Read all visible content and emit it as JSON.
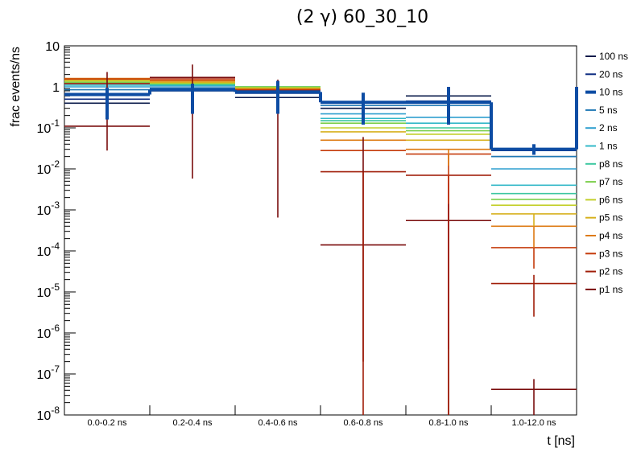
{
  "chart_data": {
    "type": "line",
    "title": "(2 γ) 60_30_10",
    "xlabel": "t [ns]",
    "ylabel": "frac events/ns",
    "y_scale": "log",
    "ylim": [
      1e-08,
      10
    ],
    "y_ticks": [
      {
        "base": "10",
        "exp": "-8"
      },
      {
        "base": "10",
        "exp": "-7"
      },
      {
        "base": "10",
        "exp": "-6"
      },
      {
        "base": "10",
        "exp": "-5"
      },
      {
        "base": "10",
        "exp": "-4"
      },
      {
        "base": "10",
        "exp": "-3"
      },
      {
        "base": "10",
        "exp": "-2"
      },
      {
        "base": "10",
        "exp": "-1"
      },
      {
        "base": "1",
        "exp": ""
      },
      {
        "base": "10",
        "exp": ""
      }
    ],
    "categories": [
      "0.0-0.2 ns",
      "0.2-0.4 ns",
      "0.4-0.6 ns",
      "0.6-0.8 ns",
      "0.8-1.0 ns",
      "1.0-12.0 ns"
    ],
    "legend_position": "right",
    "series": [
      {
        "name": "100 ns",
        "color": "#0a1a4a",
        "values": [
          0.4,
          0.8,
          0.55,
          0.3,
          0.6,
          0.02
        ]
      },
      {
        "name": "20 ns",
        "color": "#0b2a80",
        "values": [
          0.5,
          0.85,
          0.7,
          0.42,
          0.45,
          0.028
        ]
      },
      {
        "name": "10 ns",
        "color": "#0d4ca3",
        "values": [
          0.65,
          0.85,
          0.75,
          0.42,
          0.42,
          0.03
        ],
        "bold": true
      },
      {
        "name": "5 ns",
        "color": "#1f78b4",
        "values": [
          0.85,
          0.95,
          0.85,
          0.35,
          0.35,
          0.02
        ]
      },
      {
        "name": "2 ns",
        "color": "#2f9fcf",
        "values": [
          1.0,
          1.05,
          0.95,
          0.22,
          0.18,
          0.01
        ]
      },
      {
        "name": "1 ns",
        "color": "#33b8c8",
        "values": [
          1.1,
          1.1,
          1.0,
          0.17,
          0.13,
          0.004
        ]
      },
      {
        "name": "p8 ns",
        "color": "#3cc7a0",
        "values": [
          1.2,
          1.15,
          1.0,
          0.15,
          0.1,
          0.0025
        ]
      },
      {
        "name": "p7 ns",
        "color": "#7ccf4c",
        "values": [
          1.3,
          1.2,
          1.0,
          0.13,
          0.085,
          0.0018
        ]
      },
      {
        "name": "p6 ns",
        "color": "#c3cf2a",
        "values": [
          1.4,
          1.25,
          0.95,
          0.1,
          0.07,
          0.0013
        ]
      },
      {
        "name": "p5 ns",
        "color": "#d7b11e",
        "values": [
          1.5,
          1.3,
          0.9,
          0.08,
          0.05,
          0.0008
        ]
      },
      {
        "name": "p4 ns",
        "color": "#dd7a12",
        "values": [
          1.6,
          1.4,
          0.88,
          0.05,
          0.03,
          0.0004
        ]
      },
      {
        "name": "p3 ns",
        "color": "#c53b0b",
        "values": [
          1.55,
          1.5,
          0.85,
          0.028,
          0.023,
          0.00012
        ]
      },
      {
        "name": "p2 ns",
        "color": "#a01d08",
        "values": [
          1.2,
          1.65,
          0.8,
          0.0085,
          0.007,
          1.6e-05
        ]
      },
      {
        "name": "p1 ns",
        "color": "#7a0d0d",
        "values": [
          0.11,
          1.7,
          0.75,
          0.00014,
          0.00055,
          4.2e-08
        ]
      }
    ],
    "error_bars": [
      {
        "series": "p1 ns",
        "color": "#7a0d0d",
        "low": [
          0.028,
          0.0058,
          0.00065,
          2e-07,
          1e-08,
          1e-08
        ],
        "high": [
          2.3,
          3.5,
          1.5,
          0.06,
          0.0045,
          7.5e-08
        ]
      },
      {
        "series": "p2 ns",
        "color": "#a01d08",
        "low": [
          null,
          null,
          null,
          1e-08,
          1e-08,
          2.5e-06
        ],
        "high": [
          null,
          null,
          null,
          null,
          4e-07,
          2.6e-05
        ]
      },
      {
        "series": "p3 ns",
        "color": "#c53b0b",
        "low": [
          null,
          null,
          null,
          null,
          0.0014,
          3.7e-05
        ],
        "high": [
          null,
          null,
          null,
          null,
          null,
          null
        ]
      },
      {
        "series": "p4 ns",
        "color": "#dd7a12",
        "low": [
          null,
          null,
          null,
          null,
          0.012,
          0.00012
        ],
        "high": [
          null,
          null,
          null,
          null,
          null,
          null
        ]
      },
      {
        "series": "p5 ns",
        "color": "#d7b11e",
        "low": [
          null,
          null,
          null,
          null,
          null,
          0.0004
        ],
        "high": [
          null,
          null,
          null,
          null,
          null,
          null
        ]
      },
      {
        "series": "10 ns",
        "color": "#0d4ca3",
        "low": [
          0.16,
          0.22,
          0.22,
          0.12,
          0.12,
          0.022
        ],
        "high": [
          0.95,
          1.2,
          1.4,
          0.72,
          1.0,
          0.04
        ]
      }
    ]
  }
}
